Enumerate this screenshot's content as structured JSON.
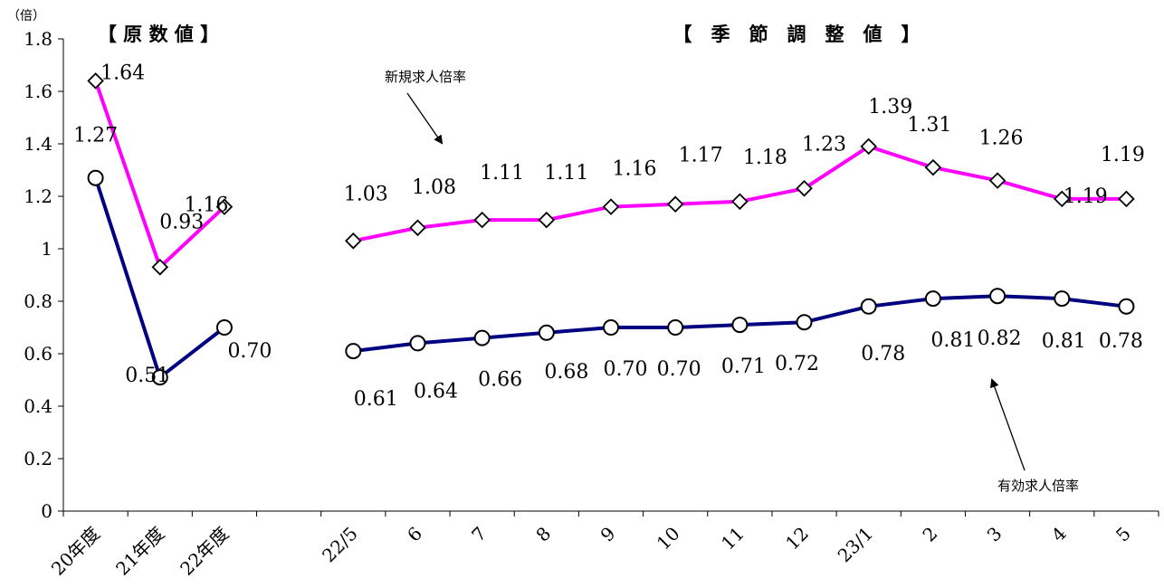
{
  "chart_data": {
    "type": "line",
    "unit": "（倍）",
    "section_titles": {
      "raw": "【 原 数 値 】",
      "seasonal": "【　季　節　調　整　値　】"
    },
    "categories": [
      "20年度",
      "21年度",
      "22年度",
      "",
      "22/5",
      "6",
      "7",
      "8",
      "9",
      "10",
      "11",
      "12",
      "23/1",
      "2",
      "3",
      "4",
      "5"
    ],
    "ylim": [
      0,
      1.8
    ],
    "yticks": [
      "0",
      "0.2",
      "0.4",
      "0.6",
      "0.8",
      "1",
      "1.2",
      "1.4",
      "1.6",
      "1.8"
    ],
    "grid": false,
    "series": [
      {
        "name": "新規求人倍率",
        "color": "#ff00ff",
        "marker": "diamond",
        "values": [
          1.64,
          0.93,
          1.16,
          null,
          1.03,
          1.08,
          1.11,
          1.11,
          1.16,
          1.17,
          1.18,
          1.23,
          1.39,
          1.31,
          1.26,
          1.19,
          1.19
        ],
        "labels": [
          "1.64",
          "0.93",
          "1.16",
          "",
          "1.03",
          "1.08",
          "1.11",
          "1.11",
          "1.16",
          "1.17",
          "1.18",
          "1.23",
          "1.39",
          "1.31",
          "1.26",
          "1.19",
          "1.19"
        ]
      },
      {
        "name": "有効求人倍率",
        "color": "#000080",
        "marker": "circle",
        "values": [
          1.27,
          0.51,
          0.7,
          null,
          0.61,
          0.64,
          0.66,
          0.68,
          0.7,
          0.7,
          0.71,
          0.72,
          0.78,
          0.81,
          0.82,
          0.81,
          0.78
        ],
        "labels": [
          "1.27",
          "0.51",
          "0.70",
          "",
          "0.61",
          "0.64",
          "0.66",
          "0.68",
          "0.70",
          "0.70",
          "0.71",
          "0.72",
          "0.78",
          "0.81",
          "0.82",
          "0.81",
          "0.78"
        ]
      }
    ]
  }
}
